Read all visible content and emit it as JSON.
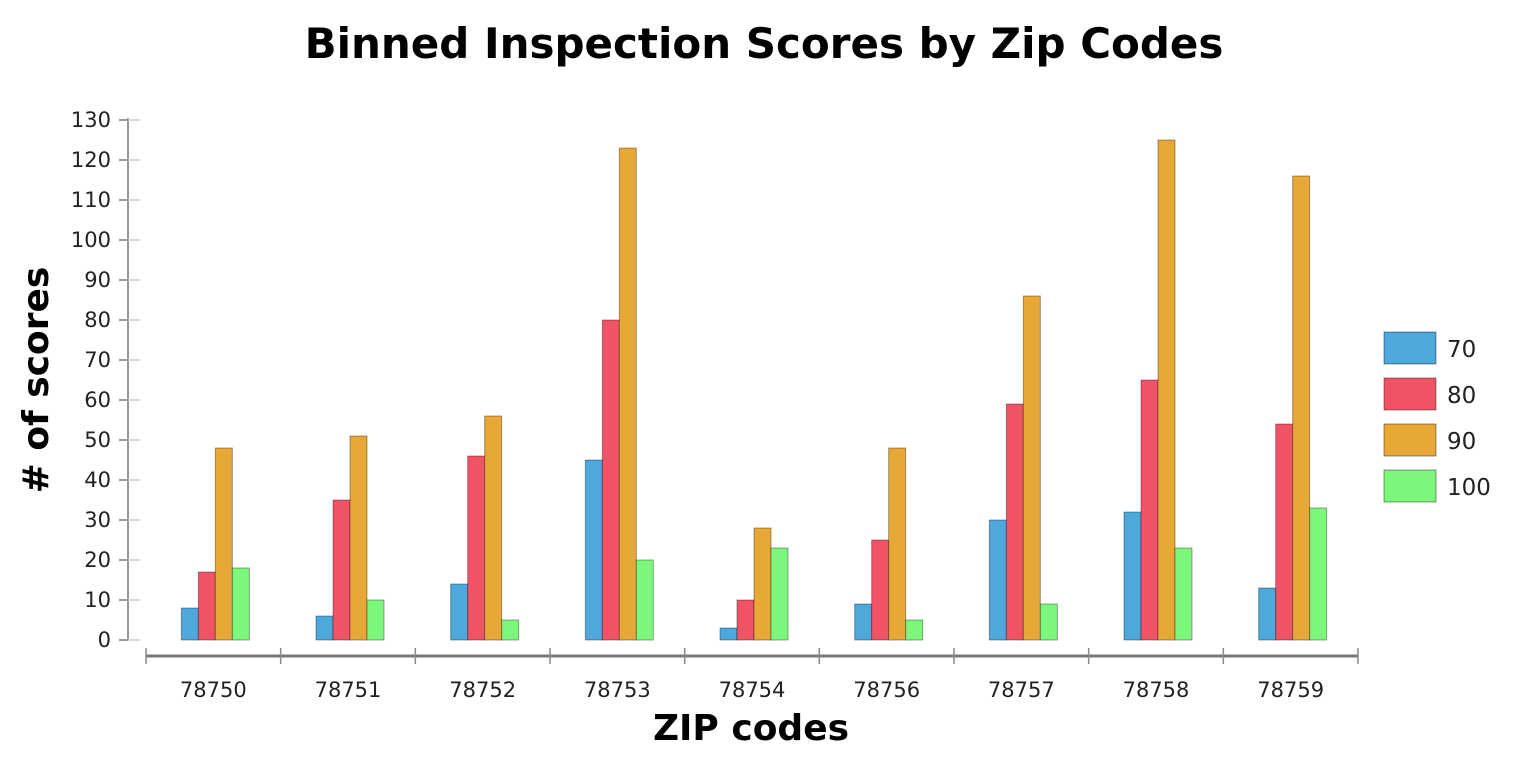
{
  "chart_data": {
    "type": "bar",
    "title": "Binned Inspection Scores by Zip Codes",
    "xlabel": "ZIP codes",
    "ylabel": "# of scores",
    "ylim": [
      0,
      130
    ],
    "yticks": [
      0,
      10,
      20,
      30,
      40,
      50,
      60,
      70,
      80,
      90,
      100,
      110,
      120,
      130
    ],
    "categories": [
      "78750",
      "78751",
      "78752",
      "78753",
      "78754",
      "78756",
      "78757",
      "78758",
      "78759"
    ],
    "series": [
      {
        "name": "70",
        "color": "#4fa8db",
        "values": [
          8,
          6,
          14,
          45,
          3,
          9,
          30,
          32,
          13
        ]
      },
      {
        "name": "80",
        "color": "#ef5466",
        "values": [
          17,
          35,
          46,
          80,
          10,
          25,
          59,
          65,
          54
        ]
      },
      {
        "name": "90",
        "color": "#e8a838",
        "values": [
          48,
          51,
          56,
          123,
          28,
          48,
          86,
          125,
          116
        ]
      },
      {
        "name": "100",
        "color": "#7cf77c",
        "values": [
          18,
          10,
          5,
          20,
          23,
          5,
          9,
          23,
          33
        ]
      }
    ],
    "legend_position": "right",
    "grid": false
  }
}
